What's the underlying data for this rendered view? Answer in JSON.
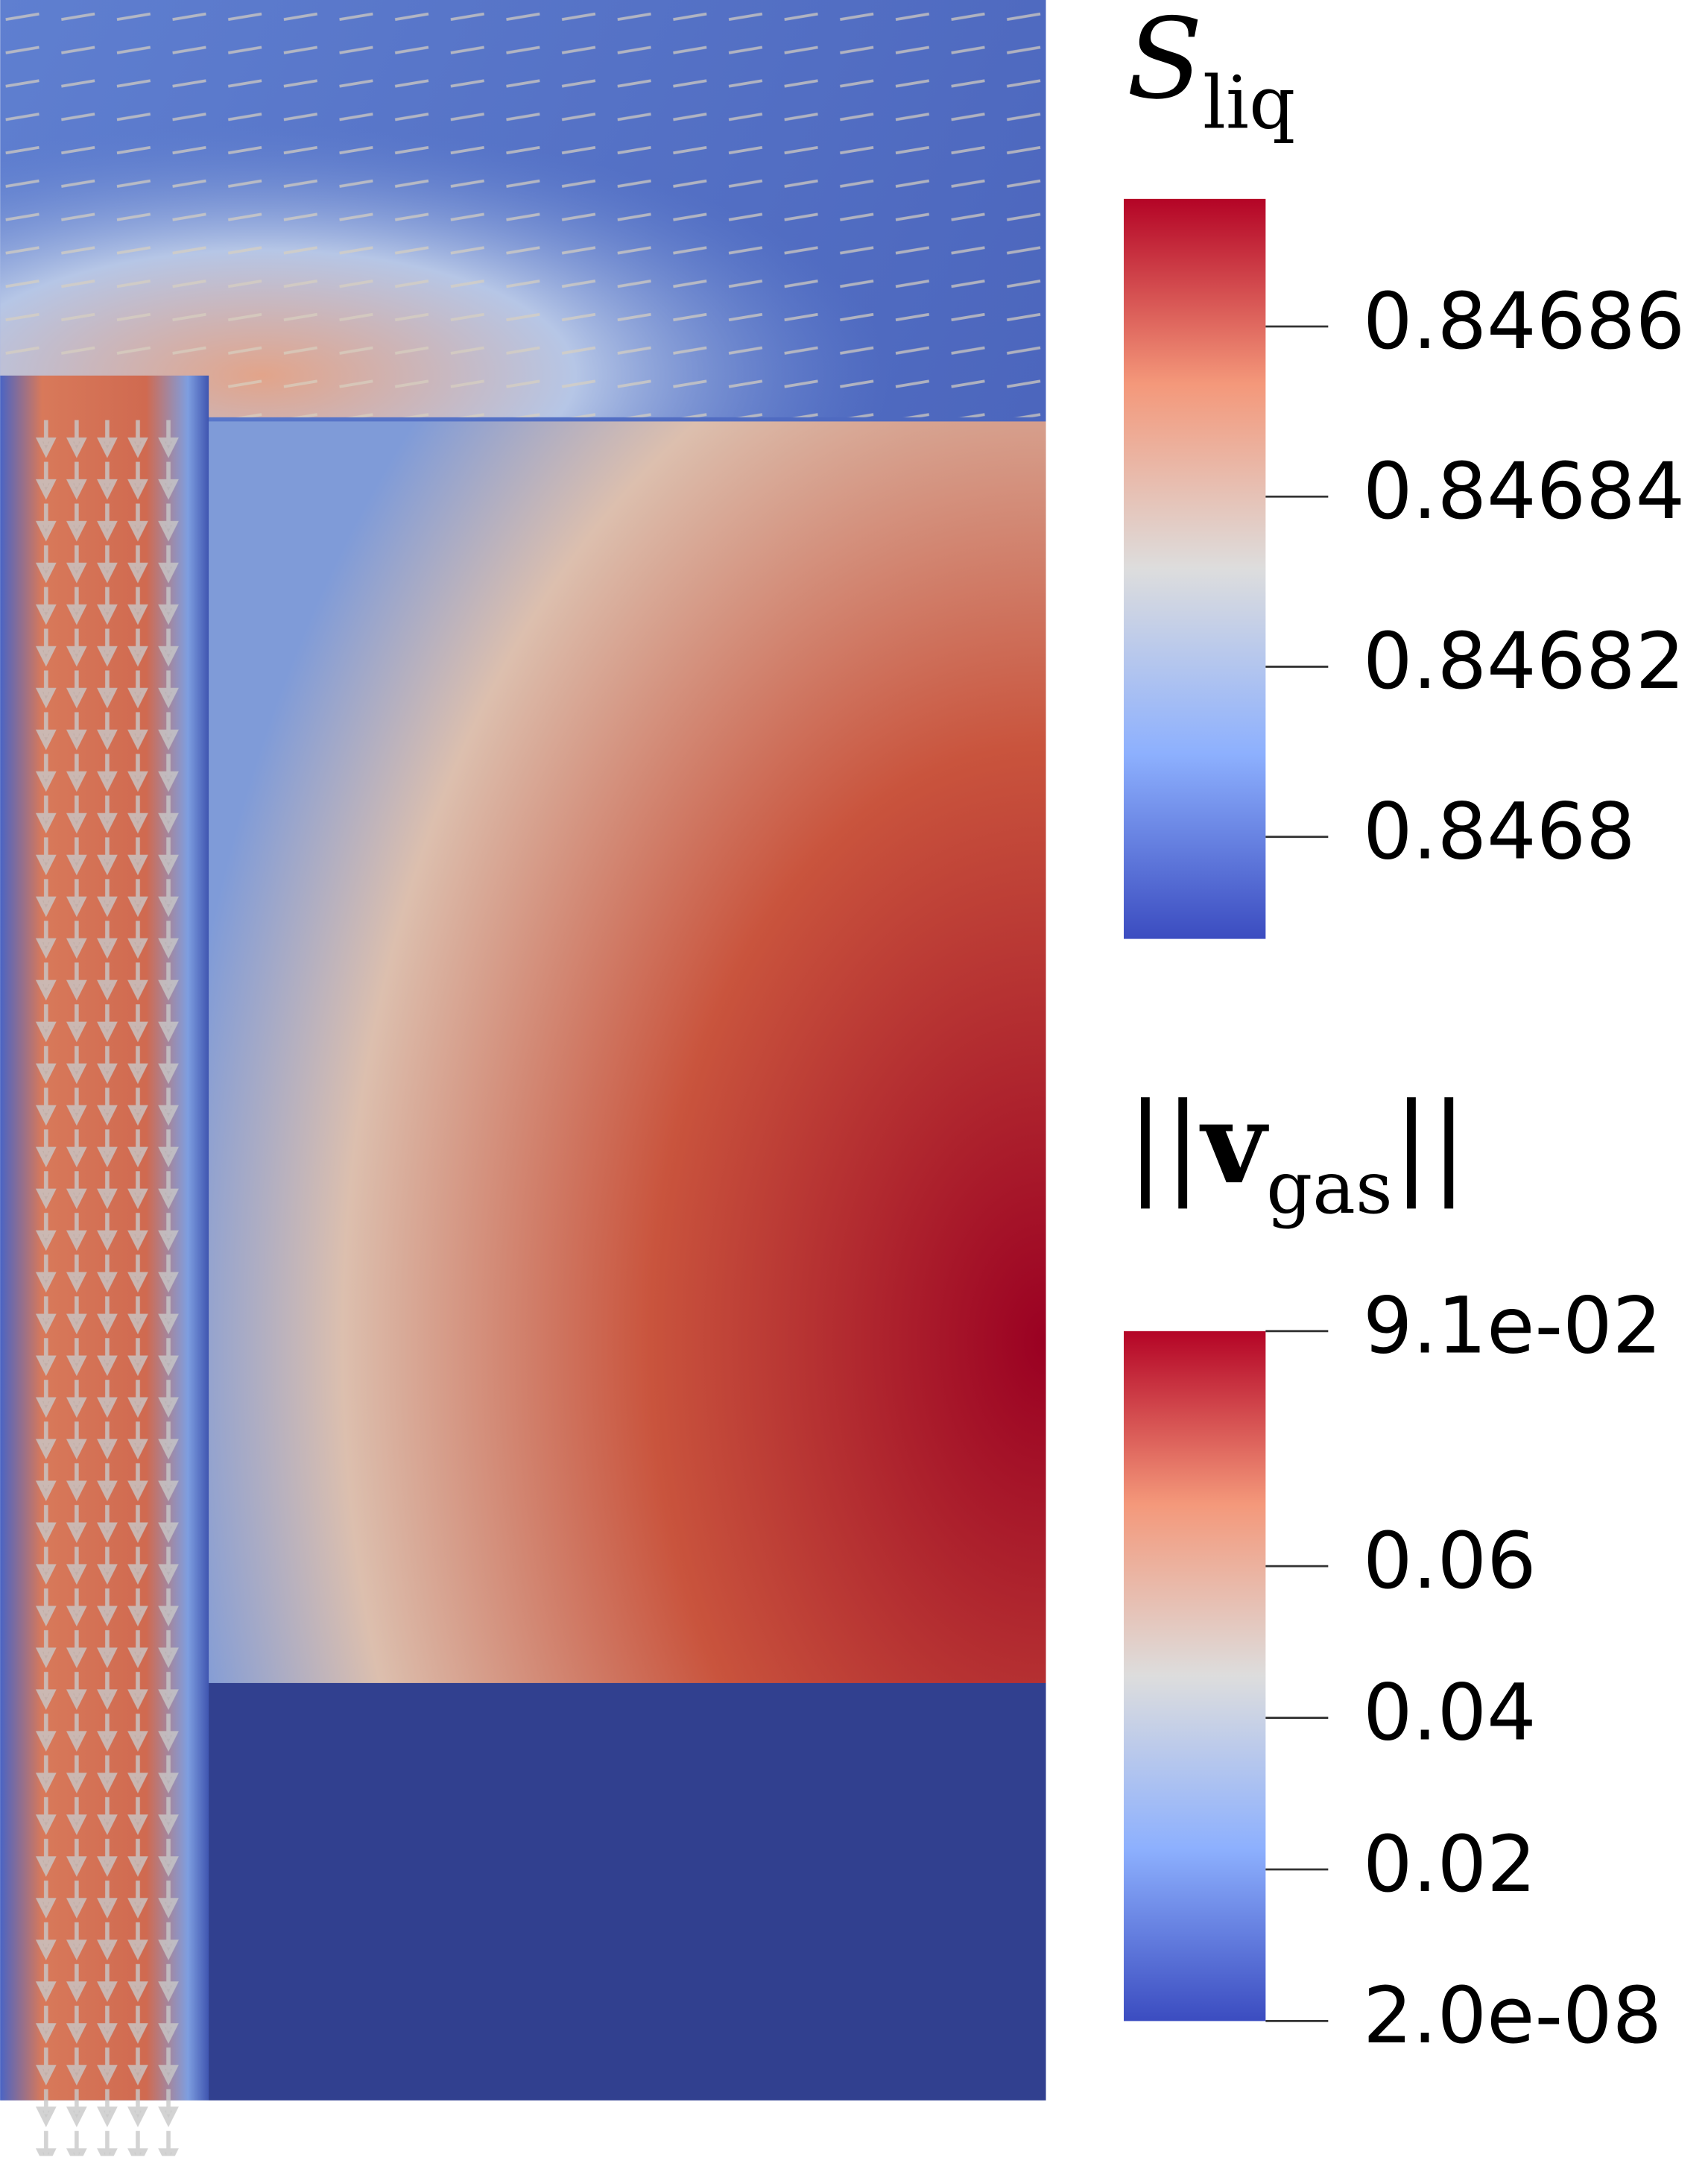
{
  "chart_data": {
    "type": "field",
    "colorbars": [
      {
        "title": {
          "symbol": "S",
          "subscript": "liq"
        },
        "lim": [
          0.846788,
          0.846875
        ],
        "ticks": [
          0.84686,
          0.84684,
          0.84682,
          0.8468
        ],
        "colors": [
          "#3b4cc0",
          "#8db0fe",
          "#dddddd",
          "#f4987a",
          "#b40426"
        ]
      },
      {
        "title": {
          "prefix": "||",
          "symbol": "v",
          "subscript": "gas",
          "suffix": "||"
        },
        "lim": [
          2e-08,
          0.091
        ],
        "ticks": [
          {
            "value": 0.091,
            "label": "9.1e-02"
          },
          0.06,
          0.04,
          0.02,
          {
            "value": 2e-08,
            "label": "2.0e-08"
          }
        ],
        "colors": [
          "#3b4cc0",
          "#8db0fe",
          "#dddddd",
          "#f4987a",
          "#b40426"
        ]
      }
    ]
  }
}
